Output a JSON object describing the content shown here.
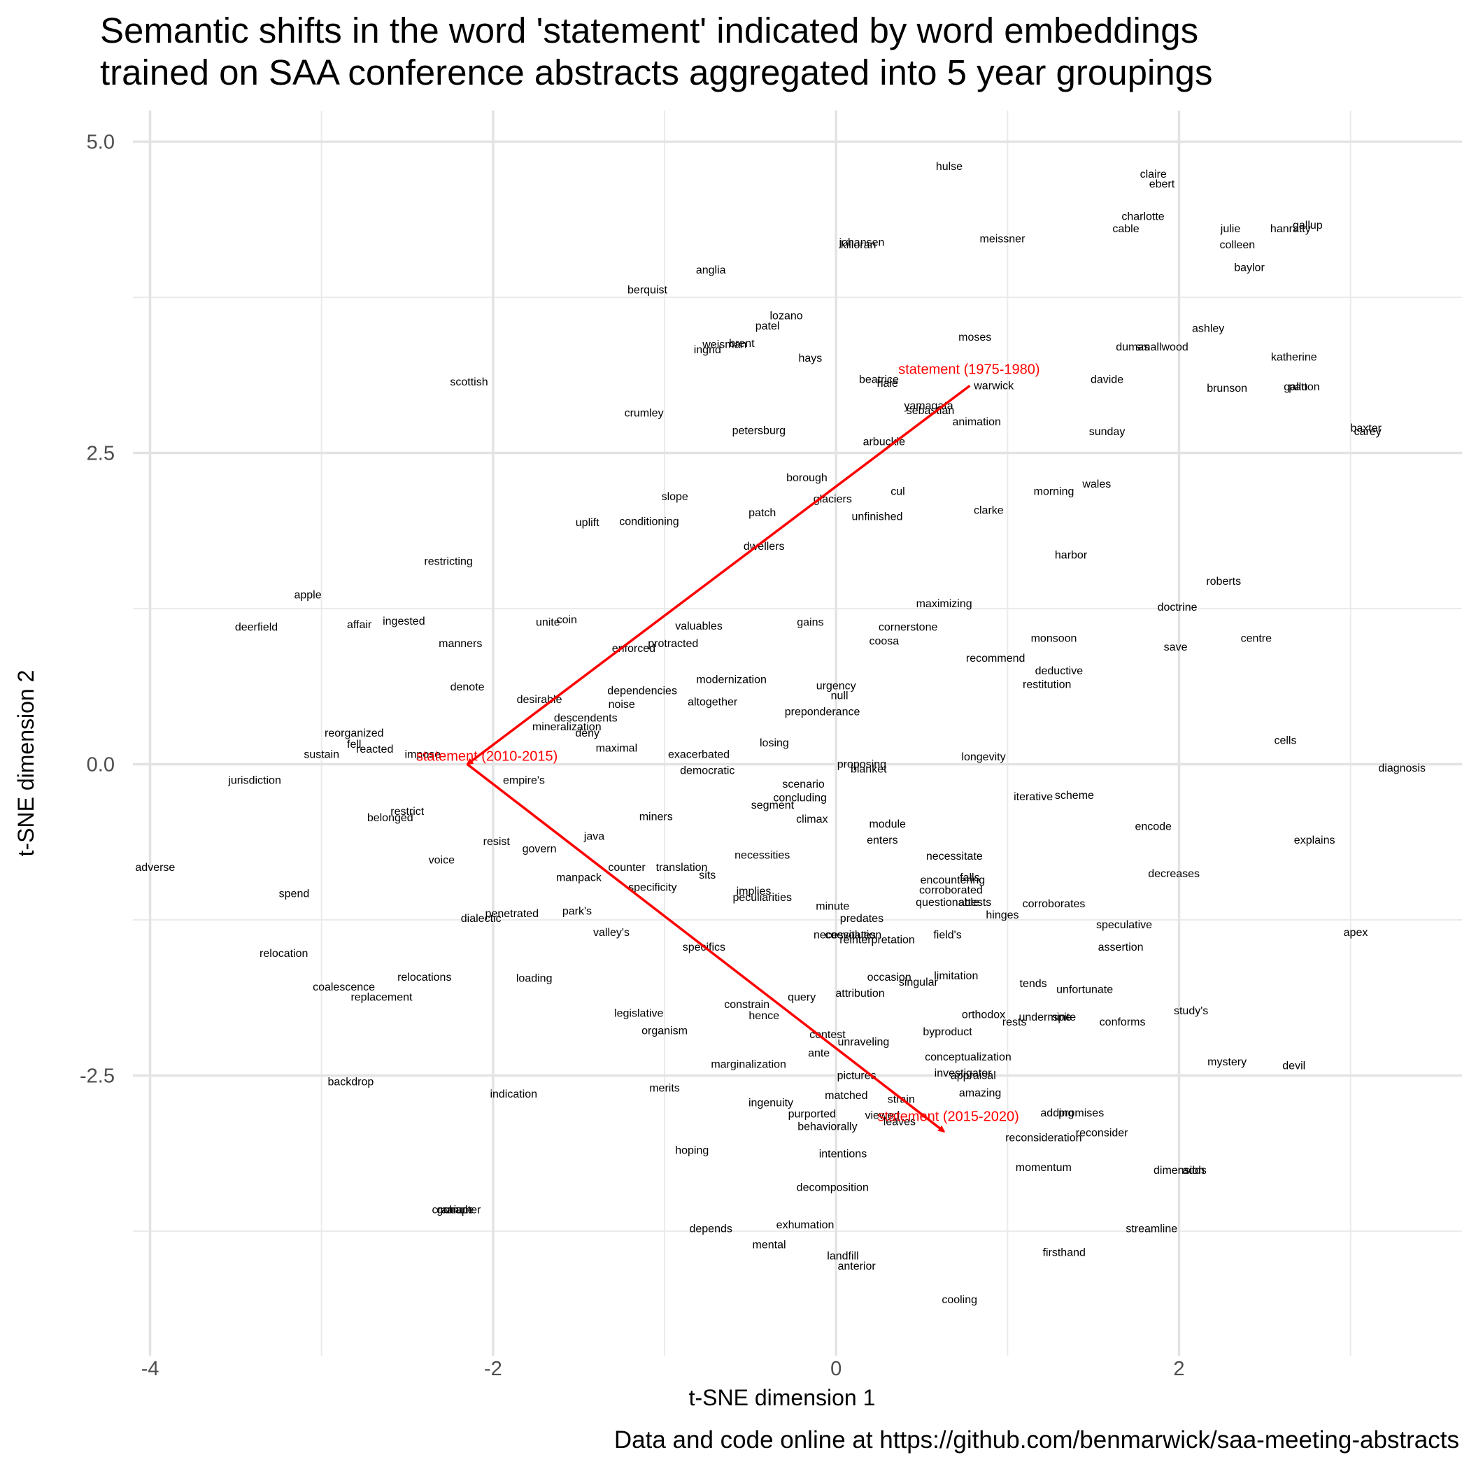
{
  "chart_data": {
    "type": "scatter",
    "title": "Semantic shifts in the word 'statement' indicated by word embeddings\ntrained on SAA conference abstracts aggregated into 5 year groupings",
    "caption": "Data and code online at https://github.com/benmarwick/saa-meeting-abstracts",
    "xlabel": "t-SNE dimension 1",
    "ylabel": "t-SNE dimension 2",
    "xlim": [
      -4.1,
      3.65
    ],
    "ylim": [
      -4.75,
      5.25
    ],
    "xticks": [
      {
        "value": -4,
        "label": "-4"
      },
      {
        "value": -2,
        "label": "-2"
      },
      {
        "value": 0,
        "label": "0"
      },
      {
        "value": 2,
        "label": "2"
      }
    ],
    "yticks": [
      {
        "value": 5,
        "label": "5.0"
      },
      {
        "value": 2.5,
        "label": "2.5"
      },
      {
        "value": 0,
        "label": "0.0"
      },
      {
        "value": -2.5,
        "label": "-2.5"
      }
    ],
    "x_minor": [
      -3,
      -1,
      1,
      3
    ],
    "y_minor": [
      3.75,
      1.25,
      -1.25,
      -3.75
    ],
    "grid": true,
    "word_color": "#000000",
    "arrow_color": "#ff0000",
    "path": [
      {
        "label": "statement (1975-1980)",
        "x": 0.78,
        "y": 3.04
      },
      {
        "label": "statement (2010-2015)",
        "x": -2.15,
        "y": 0.0
      },
      {
        "label": "statement (2015-2020)",
        "x": 0.63,
        "y": -2.95
      }
    ],
    "words": [
      {
        "w": "hulse",
        "x": 0.66,
        "y": 4.8
      },
      {
        "w": "claire",
        "x": 1.85,
        "y": 4.74
      },
      {
        "w": "ebert",
        "x": 1.9,
        "y": 4.66
      },
      {
        "w": "charlotte",
        "x": 1.79,
        "y": 4.4
      },
      {
        "w": "cable",
        "x": 1.69,
        "y": 4.3
      },
      {
        "w": "julie",
        "x": 2.3,
        "y": 4.3
      },
      {
        "w": "hanratty",
        "x": 2.65,
        "y": 4.3
      },
      {
        "w": "gallup",
        "x": 2.75,
        "y": 4.33
      },
      {
        "w": "colleen",
        "x": 2.34,
        "y": 4.17
      },
      {
        "w": "baylor",
        "x": 2.41,
        "y": 3.99
      },
      {
        "w": "johansen",
        "x": 0.15,
        "y": 4.19
      },
      {
        "w": "killoran",
        "x": 0.13,
        "y": 4.17
      },
      {
        "w": "meissner",
        "x": 0.97,
        "y": 4.22
      },
      {
        "w": "anglia",
        "x": -0.73,
        "y": 3.97
      },
      {
        "w": "berquist",
        "x": -1.1,
        "y": 3.81
      },
      {
        "w": "lozano",
        "x": -0.29,
        "y": 3.6
      },
      {
        "w": "patel",
        "x": -0.4,
        "y": 3.52
      },
      {
        "w": "ashley",
        "x": 2.17,
        "y": 3.5
      },
      {
        "w": "moses",
        "x": 0.81,
        "y": 3.43
      },
      {
        "w": "weisman",
        "x": -0.65,
        "y": 3.37
      },
      {
        "w": "brent",
        "x": -0.55,
        "y": 3.38
      },
      {
        "w": "ingrid",
        "x": -0.75,
        "y": 3.33
      },
      {
        "w": "dumas",
        "x": 1.73,
        "y": 3.35
      },
      {
        "w": "smallwood",
        "x": 1.9,
        "y": 3.35
      },
      {
        "w": "katherine",
        "x": 2.67,
        "y": 3.27
      },
      {
        "w": "hays",
        "x": -0.15,
        "y": 3.26
      },
      {
        "w": "scottish",
        "x": -2.14,
        "y": 3.07
      },
      {
        "w": "davide",
        "x": 1.58,
        "y": 3.09
      },
      {
        "w": "beatrice",
        "x": 0.25,
        "y": 3.09
      },
      {
        "w": "hale",
        "x": 0.3,
        "y": 3.06
      },
      {
        "w": "warwick",
        "x": 0.92,
        "y": 3.04
      },
      {
        "w": "brunson",
        "x": 2.28,
        "y": 3.02
      },
      {
        "w": "patton",
        "x": 2.73,
        "y": 3.03
      },
      {
        "w": "gallo",
        "x": 2.68,
        "y": 3.03
      },
      {
        "w": "yamagata",
        "x": 0.54,
        "y": 2.88
      },
      {
        "w": "sebastian",
        "x": 0.55,
        "y": 2.84
      },
      {
        "w": "crumley",
        "x": -1.12,
        "y": 2.82
      },
      {
        "w": "animation",
        "x": 0.82,
        "y": 2.75
      },
      {
        "w": "petersburg",
        "x": -0.45,
        "y": 2.68
      },
      {
        "w": "sunday",
        "x": 1.58,
        "y": 2.67
      },
      {
        "w": "baxter",
        "x": 3.09,
        "y": 2.7
      },
      {
        "w": "carey",
        "x": 3.1,
        "y": 2.67
      },
      {
        "w": "arbuckle",
        "x": 0.28,
        "y": 2.59
      },
      {
        "w": "borough",
        "x": -0.17,
        "y": 2.3
      },
      {
        "w": "wales",
        "x": 1.52,
        "y": 2.25
      },
      {
        "w": "cul",
        "x": 0.36,
        "y": 2.19
      },
      {
        "w": "morning",
        "x": 1.27,
        "y": 2.19
      },
      {
        "w": "slope",
        "x": -0.94,
        "y": 2.15
      },
      {
        "w": "glaciers",
        "x": -0.02,
        "y": 2.13
      },
      {
        "w": "patch",
        "x": -0.43,
        "y": 2.02
      },
      {
        "w": "clarke",
        "x": 0.89,
        "y": 2.04
      },
      {
        "w": "unfinished",
        "x": 0.24,
        "y": 1.99
      },
      {
        "w": "uplift",
        "x": -1.45,
        "y": 1.94
      },
      {
        "w": "conditioning",
        "x": -1.09,
        "y": 1.95
      },
      {
        "w": "dwellers",
        "x": -0.42,
        "y": 1.75
      },
      {
        "w": "harbor",
        "x": 1.37,
        "y": 1.68
      },
      {
        "w": "restricting",
        "x": -2.26,
        "y": 1.63
      },
      {
        "w": "roberts",
        "x": 2.26,
        "y": 1.47
      },
      {
        "w": "apple",
        "x": -3.08,
        "y": 1.36
      },
      {
        "w": "maximizing",
        "x": 0.63,
        "y": 1.29
      },
      {
        "w": "doctrine",
        "x": 1.99,
        "y": 1.26
      },
      {
        "w": "deerfield",
        "x": -3.38,
        "y": 1.1
      },
      {
        "w": "affair",
        "x": -2.78,
        "y": 1.12
      },
      {
        "w": "ingested",
        "x": -2.52,
        "y": 1.15
      },
      {
        "w": "unite",
        "x": -1.68,
        "y": 1.14
      },
      {
        "w": "coin",
        "x": -1.57,
        "y": 1.16
      },
      {
        "w": "valuables",
        "x": -0.8,
        "y": 1.11
      },
      {
        "w": "gains",
        "x": -0.15,
        "y": 1.14
      },
      {
        "w": "cornerstone",
        "x": 0.42,
        "y": 1.1
      },
      {
        "w": "coosa",
        "x": 0.28,
        "y": 0.99
      },
      {
        "w": "monsoon",
        "x": 1.27,
        "y": 1.01
      },
      {
        "w": "centre",
        "x": 2.45,
        "y": 1.01
      },
      {
        "w": "manners",
        "x": -2.19,
        "y": 0.97
      },
      {
        "w": "protracted",
        "x": -0.95,
        "y": 0.97
      },
      {
        "w": "enforced",
        "x": -1.18,
        "y": 0.93
      },
      {
        "w": "save",
        "x": 1.98,
        "y": 0.94
      },
      {
        "w": "recommend",
        "x": 0.93,
        "y": 0.85
      },
      {
        "w": "deductive",
        "x": 1.3,
        "y": 0.75
      },
      {
        "w": "modernization",
        "x": -0.61,
        "y": 0.68
      },
      {
        "w": "restitution",
        "x": 1.23,
        "y": 0.64
      },
      {
        "w": "urgency",
        "x": 0.0,
        "y": 0.63
      },
      {
        "w": "denote",
        "x": -2.15,
        "y": 0.62
      },
      {
        "w": "dependencies",
        "x": -1.13,
        "y": 0.59
      },
      {
        "w": "null",
        "x": 0.02,
        "y": 0.55
      },
      {
        "w": "desirable",
        "x": -1.73,
        "y": 0.52
      },
      {
        "w": "altogether",
        "x": -0.72,
        "y": 0.5
      },
      {
        "w": "noise",
        "x": -1.25,
        "y": 0.48
      },
      {
        "w": "preponderance",
        "x": -0.08,
        "y": 0.42
      },
      {
        "w": "descendents",
        "x": -1.46,
        "y": 0.37
      },
      {
        "w": "mineralization",
        "x": -1.57,
        "y": 0.3
      },
      {
        "w": "deny",
        "x": -1.45,
        "y": 0.25
      },
      {
        "w": "reorganized",
        "x": -2.81,
        "y": 0.25
      },
      {
        "w": "cells",
        "x": 2.62,
        "y": 0.19
      },
      {
        "w": "losing",
        "x": -0.36,
        "y": 0.17
      },
      {
        "w": "fell",
        "x": -2.81,
        "y": 0.16
      },
      {
        "w": "reacted",
        "x": -2.69,
        "y": 0.12
      },
      {
        "w": "maximal",
        "x": -1.28,
        "y": 0.13
      },
      {
        "w": "impose",
        "x": -2.41,
        "y": 0.08
      },
      {
        "w": "sustain",
        "x": -3.0,
        "y": 0.08
      },
      {
        "w": "exacerbated",
        "x": -0.8,
        "y": 0.08
      },
      {
        "w": "longevity",
        "x": 0.86,
        "y": 0.06
      },
      {
        "w": "proposing",
        "x": 0.15,
        "y": 0.0
      },
      {
        "w": "blanket",
        "x": 0.19,
        "y": -0.04
      },
      {
        "w": "democratic",
        "x": -0.75,
        "y": -0.05
      },
      {
        "w": "diagnosis",
        "x": 3.3,
        "y": -0.03
      },
      {
        "w": "jurisdiction",
        "x": -3.39,
        "y": -0.13
      },
      {
        "w": "empire's",
        "x": -1.82,
        "y": -0.13
      },
      {
        "w": "scenario",
        "x": -0.19,
        "y": -0.16
      },
      {
        "w": "iterative",
        "x": 1.15,
        "y": -0.26
      },
      {
        "w": "scheme",
        "x": 1.39,
        "y": -0.25
      },
      {
        "w": "concluding",
        "x": -0.21,
        "y": -0.27
      },
      {
        "w": "segment",
        "x": -0.37,
        "y": -0.33
      },
      {
        "w": "restrict",
        "x": -2.5,
        "y": -0.38
      },
      {
        "w": "belonged",
        "x": -2.6,
        "y": -0.43
      },
      {
        "w": "miners",
        "x": -1.05,
        "y": -0.42
      },
      {
        "w": "climax",
        "x": -0.14,
        "y": -0.44
      },
      {
        "w": "module",
        "x": 0.3,
        "y": -0.48
      },
      {
        "w": "encode",
        "x": 1.85,
        "y": -0.5
      },
      {
        "w": "java",
        "x": -1.41,
        "y": -0.58
      },
      {
        "w": "enters",
        "x": 0.27,
        "y": -0.61
      },
      {
        "w": "explains",
        "x": 2.79,
        "y": -0.61
      },
      {
        "w": "resist",
        "x": -1.98,
        "y": -0.62
      },
      {
        "w": "govern",
        "x": -1.73,
        "y": -0.68
      },
      {
        "w": "necessities",
        "x": -0.43,
        "y": -0.73
      },
      {
        "w": "necessitate",
        "x": 0.69,
        "y": -0.74
      },
      {
        "w": "voice",
        "x": -2.3,
        "y": -0.77
      },
      {
        "w": "adverse",
        "x": -3.97,
        "y": -0.83
      },
      {
        "w": "counter",
        "x": -1.22,
        "y": -0.83
      },
      {
        "w": "translation",
        "x": -0.9,
        "y": -0.83
      },
      {
        "w": "decreases",
        "x": 1.97,
        "y": -0.88
      },
      {
        "w": "manpack",
        "x": -1.5,
        "y": -0.91
      },
      {
        "w": "sits",
        "x": -0.75,
        "y": -0.89
      },
      {
        "w": "encountering",
        "x": 0.68,
        "y": -0.93
      },
      {
        "w": "falls",
        "x": 0.78,
        "y": -0.91
      },
      {
        "w": "specificity",
        "x": -1.07,
        "y": -0.99
      },
      {
        "w": "corroborated",
        "x": 0.67,
        "y": -1.01
      },
      {
        "w": "implies",
        "x": -0.48,
        "y": -1.02
      },
      {
        "w": "spend",
        "x": -3.16,
        "y": -1.04
      },
      {
        "w": "peculiarities",
        "x": -0.43,
        "y": -1.07
      },
      {
        "w": "questionable",
        "x": 0.65,
        "y": -1.11
      },
      {
        "w": "attests",
        "x": 0.81,
        "y": -1.11
      },
      {
        "w": "corroborates",
        "x": 1.27,
        "y": -1.12
      },
      {
        "w": "minute",
        "x": -0.02,
        "y": -1.14
      },
      {
        "w": "penetrated",
        "x": -1.89,
        "y": -1.2
      },
      {
        "w": "park's",
        "x": -1.51,
        "y": -1.18
      },
      {
        "w": "hinges",
        "x": 0.97,
        "y": -1.21
      },
      {
        "w": "dialectic",
        "x": -2.07,
        "y": -1.24
      },
      {
        "w": "predates",
        "x": 0.15,
        "y": -1.24
      },
      {
        "w": "speculative",
        "x": 1.68,
        "y": -1.29
      },
      {
        "w": "valley's",
        "x": -1.31,
        "y": -1.35
      },
      {
        "w": "necessitates",
        "x": 0.05,
        "y": -1.37
      },
      {
        "w": "coevolution",
        "x": 0.1,
        "y": -1.37
      },
      {
        "w": "reinterpretation",
        "x": 0.24,
        "y": -1.41
      },
      {
        "w": "field's",
        "x": 0.65,
        "y": -1.37
      },
      {
        "w": "apex",
        "x": 3.03,
        "y": -1.35
      },
      {
        "w": "assertion",
        "x": 1.66,
        "y": -1.47
      },
      {
        "w": "specifics",
        "x": -0.77,
        "y": -1.47
      },
      {
        "w": "relocation",
        "x": -3.22,
        "y": -1.52
      },
      {
        "w": "relocations",
        "x": -2.4,
        "y": -1.71
      },
      {
        "w": "loading",
        "x": -1.76,
        "y": -1.72
      },
      {
        "w": "occasion",
        "x": 0.31,
        "y": -1.71
      },
      {
        "w": "limitation",
        "x": 0.7,
        "y": -1.7
      },
      {
        "w": "singular",
        "x": 0.48,
        "y": -1.75
      },
      {
        "w": "tends",
        "x": 1.15,
        "y": -1.76
      },
      {
        "w": "coalescence",
        "x": -2.87,
        "y": -1.79
      },
      {
        "w": "unfortunate",
        "x": 1.45,
        "y": -1.81
      },
      {
        "w": "attribution",
        "x": 0.14,
        "y": -1.84
      },
      {
        "w": "replacement",
        "x": -2.65,
        "y": -1.87
      },
      {
        "w": "query",
        "x": -0.2,
        "y": -1.87
      },
      {
        "w": "constrain",
        "x": -0.52,
        "y": -1.93
      },
      {
        "w": "legislative",
        "x": -1.15,
        "y": -2.0
      },
      {
        "w": "hence",
        "x": -0.42,
        "y": -2.02
      },
      {
        "w": "orthodox",
        "x": 0.86,
        "y": -2.01
      },
      {
        "w": "undermine",
        "x": 1.22,
        "y": -2.03
      },
      {
        "w": "spite",
        "x": 1.33,
        "y": -2.03
      },
      {
        "w": "study's",
        "x": 2.07,
        "y": -1.98
      },
      {
        "w": "rests",
        "x": 1.04,
        "y": -2.07
      },
      {
        "w": "conforms",
        "x": 1.67,
        "y": -2.07
      },
      {
        "w": "organism",
        "x": -1.0,
        "y": -2.14
      },
      {
        "w": "byproduct",
        "x": 0.65,
        "y": -2.15
      },
      {
        "w": "contest",
        "x": -0.05,
        "y": -2.17
      },
      {
        "w": "unraveling",
        "x": 0.16,
        "y": -2.23
      },
      {
        "w": "ante",
        "x": -0.1,
        "y": -2.32
      },
      {
        "w": "conceptualization",
        "x": 0.77,
        "y": -2.35
      },
      {
        "w": "marginalization",
        "x": -0.51,
        "y": -2.41
      },
      {
        "w": "mystery",
        "x": 2.28,
        "y": -2.39
      },
      {
        "w": "devil",
        "x": 2.67,
        "y": -2.42
      },
      {
        "w": "investigator",
        "x": 0.74,
        "y": -2.48
      },
      {
        "w": "appraisal",
        "x": 0.8,
        "y": -2.5
      },
      {
        "w": "pictures",
        "x": 0.12,
        "y": -2.5
      },
      {
        "w": "backdrop",
        "x": -2.83,
        "y": -2.55
      },
      {
        "w": "merits",
        "x": -1.0,
        "y": -2.6
      },
      {
        "w": "indication",
        "x": -1.88,
        "y": -2.65
      },
      {
        "w": "amazing",
        "x": 0.84,
        "y": -2.64
      },
      {
        "w": "matched",
        "x": 0.06,
        "y": -2.66
      },
      {
        "w": "strain",
        "x": 0.38,
        "y": -2.69
      },
      {
        "w": "ingenuity",
        "x": -0.38,
        "y": -2.72
      },
      {
        "w": "adding",
        "x": 1.29,
        "y": -2.8
      },
      {
        "w": "promises",
        "x": 1.43,
        "y": -2.8
      },
      {
        "w": "purported",
        "x": -0.14,
        "y": -2.81
      },
      {
        "w": "viewed",
        "x": 0.27,
        "y": -2.82
      },
      {
        "w": "leaves",
        "x": 0.37,
        "y": -2.87
      },
      {
        "w": "behaviorally",
        "x": -0.05,
        "y": -2.91
      },
      {
        "w": "reconsider",
        "x": 1.55,
        "y": -2.96
      },
      {
        "w": "reconsideration",
        "x": 1.21,
        "y": -3.0
      },
      {
        "w": "hoping",
        "x": -0.84,
        "y": -3.1
      },
      {
        "w": "intentions",
        "x": 0.04,
        "y": -3.13
      },
      {
        "w": "momentum",
        "x": 1.21,
        "y": -3.24
      },
      {
        "w": "dimension",
        "x": 2.0,
        "y": -3.26
      },
      {
        "w": "adds",
        "x": 2.09,
        "y": -3.26
      },
      {
        "w": "decomposition",
        "x": -0.02,
        "y": -3.4
      },
      {
        "w": "cranium",
        "x": -2.24,
        "y": -3.58
      },
      {
        "w": "granule",
        "x": -2.22,
        "y": -3.58
      },
      {
        "w": "chapter",
        "x": -2.18,
        "y": -3.58
      },
      {
        "w": "exhumation",
        "x": -0.18,
        "y": -3.7
      },
      {
        "w": "depends",
        "x": -0.73,
        "y": -3.73
      },
      {
        "w": "streamline",
        "x": 1.84,
        "y": -3.73
      },
      {
        "w": "mental",
        "x": -0.39,
        "y": -3.86
      },
      {
        "w": "firsthand",
        "x": 1.33,
        "y": -3.92
      },
      {
        "w": "landfill",
        "x": 0.04,
        "y": -3.95
      },
      {
        "w": "anterior",
        "x": 0.12,
        "y": -4.03
      },
      {
        "w": "cooling",
        "x": 0.72,
        "y": -4.3
      }
    ]
  }
}
